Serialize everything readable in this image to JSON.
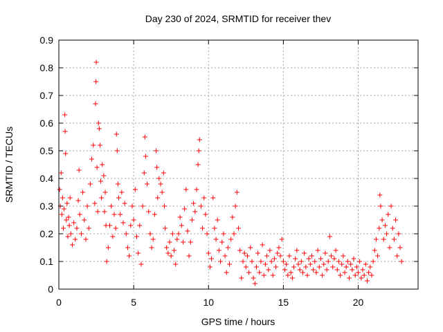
{
  "chart_data": {
    "type": "scatter",
    "title": "Day 230 of 2024, SRMTID for receiver thev",
    "xlabel": "GPS time / hours",
    "ylabel": "SRMTID / TECUs",
    "xlim": [
      0,
      24
    ],
    "ylim": [
      0,
      0.9
    ],
    "xticks": [
      0,
      5,
      10,
      15,
      20
    ],
    "xtick_labels": [
      "0",
      "5",
      "10",
      "15",
      "20"
    ],
    "yticks": [
      0,
      0.1,
      0.2,
      0.3,
      0.4,
      0.5,
      0.6,
      0.7,
      0.8,
      0.9
    ],
    "ytick_labels": [
      "0",
      "0.1",
      "0.2",
      "0.3",
      "0.4",
      "0.5",
      "0.6",
      "0.7",
      "0.8",
      "0.9"
    ],
    "grid": true,
    "marker": "+",
    "marker_color": "#ff0000",
    "series": [
      {
        "name": "SRMTID",
        "points": [
          [
            0.05,
            0.36
          ],
          [
            0.1,
            0.3
          ],
          [
            0.15,
            0.42
          ],
          [
            0.2,
            0.27
          ],
          [
            0.25,
            0.33
          ],
          [
            0.3,
            0.22
          ],
          [
            0.35,
            0.29
          ],
          [
            0.4,
            0.63
          ],
          [
            0.42,
            0.57
          ],
          [
            0.45,
            0.49
          ],
          [
            0.5,
            0.25
          ],
          [
            0.55,
            0.31
          ],
          [
            0.6,
            0.19
          ],
          [
            0.65,
            0.26
          ],
          [
            0.7,
            0.23
          ],
          [
            0.75,
            0.33
          ],
          [
            0.8,
            0.2
          ],
          [
            0.9,
            0.16
          ],
          [
            1.0,
            0.24
          ],
          [
            1.1,
            0.18
          ],
          [
            1.2,
            0.22
          ],
          [
            1.3,
            0.32
          ],
          [
            1.35,
            0.43
          ],
          [
            1.4,
            0.27
          ],
          [
            1.5,
            0.2
          ],
          [
            1.6,
            0.35
          ],
          [
            1.7,
            0.25
          ],
          [
            1.8,
            0.18
          ],
          [
            1.9,
            0.3
          ],
          [
            2.0,
            0.22
          ],
          [
            2.1,
            0.38
          ],
          [
            2.2,
            0.47
          ],
          [
            2.3,
            0.52
          ],
          [
            2.4,
            0.31
          ],
          [
            2.45,
            0.67
          ],
          [
            2.48,
            0.75
          ],
          [
            2.5,
            0.82
          ],
          [
            2.55,
            0.44
          ],
          [
            2.6,
            0.28
          ],
          [
            2.65,
            0.6
          ],
          [
            2.7,
            0.58
          ],
          [
            2.75,
            0.52
          ],
          [
            2.8,
            0.39
          ],
          [
            2.85,
            0.33
          ],
          [
            2.9,
            0.45
          ],
          [
            3.0,
            0.41
          ],
          [
            3.05,
            0.28
          ],
          [
            3.1,
            0.35
          ],
          [
            3.15,
            0.23
          ],
          [
            3.2,
            0.1
          ],
          [
            3.3,
            0.15
          ],
          [
            3.4,
            0.23
          ],
          [
            3.5,
            0.3
          ],
          [
            3.6,
            0.19
          ],
          [
            3.7,
            0.27
          ],
          [
            3.8,
            0.22
          ],
          [
            3.85,
            0.56
          ],
          [
            3.9,
            0.5
          ],
          [
            3.95,
            0.38
          ],
          [
            4.0,
            0.33
          ],
          [
            4.1,
            0.27
          ],
          [
            4.2,
            0.35
          ],
          [
            4.3,
            0.24
          ],
          [
            4.4,
            0.31
          ],
          [
            4.5,
            0.2
          ],
          [
            4.6,
            0.15
          ],
          [
            4.7,
            0.12
          ],
          [
            4.8,
            0.23
          ],
          [
            4.9,
            0.3
          ],
          [
            5.0,
            0.25
          ],
          [
            5.1,
            0.36
          ],
          [
            5.2,
            0.19
          ],
          [
            5.3,
            0.13
          ],
          [
            5.4,
            0.23
          ],
          [
            5.5,
            0.09
          ],
          [
            5.6,
            0.3
          ],
          [
            5.7,
            0.42
          ],
          [
            5.75,
            0.55
          ],
          [
            5.8,
            0.48
          ],
          [
            5.9,
            0.38
          ],
          [
            6.0,
            0.28
          ],
          [
            6.1,
            0.2
          ],
          [
            6.2,
            0.15
          ],
          [
            6.3,
            0.18
          ],
          [
            6.4,
            0.27
          ],
          [
            6.5,
            0.5
          ],
          [
            6.55,
            0.44
          ],
          [
            6.6,
            0.33
          ],
          [
            6.7,
            0.4
          ],
          [
            6.8,
            0.38
          ],
          [
            6.9,
            0.35
          ],
          [
            7.0,
            0.42
          ],
          [
            7.05,
            0.3
          ],
          [
            7.1,
            0.22
          ],
          [
            7.2,
            0.15
          ],
          [
            7.3,
            0.13
          ],
          [
            7.4,
            0.17
          ],
          [
            7.5,
            0.12
          ],
          [
            7.6,
            0.2
          ],
          [
            7.7,
            0.14
          ],
          [
            7.8,
            0.09
          ],
          [
            7.9,
            0.18
          ],
          [
            8.0,
            0.2
          ],
          [
            8.1,
            0.26
          ],
          [
            8.2,
            0.23
          ],
          [
            8.3,
            0.17
          ],
          [
            8.4,
            0.29
          ],
          [
            8.5,
            0.36
          ],
          [
            8.6,
            0.21
          ],
          [
            8.7,
            0.12
          ],
          [
            8.8,
            0.17
          ],
          [
            8.9,
            0.25
          ],
          [
            9.0,
            0.31
          ],
          [
            9.1,
            0.28
          ],
          [
            9.2,
            0.36
          ],
          [
            9.3,
            0.45
          ],
          [
            9.35,
            0.5
          ],
          [
            9.4,
            0.54
          ],
          [
            9.5,
            0.3
          ],
          [
            9.6,
            0.22
          ],
          [
            9.7,
            0.33
          ],
          [
            9.8,
            0.27
          ],
          [
            9.9,
            0.2
          ],
          [
            10.0,
            0.13
          ],
          [
            10.1,
            0.08
          ],
          [
            10.2,
            0.11
          ],
          [
            10.3,
            0.33
          ],
          [
            10.4,
            0.22
          ],
          [
            10.5,
            0.18
          ],
          [
            10.6,
            0.25
          ],
          [
            10.7,
            0.14
          ],
          [
            10.8,
            0.1
          ],
          [
            10.9,
            0.17
          ],
          [
            11.0,
            0.2
          ],
          [
            11.1,
            0.12
          ],
          [
            11.2,
            0.06
          ],
          [
            11.3,
            0.15
          ],
          [
            11.4,
            0.09
          ],
          [
            11.5,
            0.18
          ],
          [
            11.6,
            0.26
          ],
          [
            11.7,
            0.2
          ],
          [
            11.8,
            0.3
          ],
          [
            11.9,
            0.35
          ],
          [
            12.0,
            0.22
          ],
          [
            12.1,
            0.14
          ],
          [
            12.2,
            0.04
          ],
          [
            12.3,
            0.1
          ],
          [
            12.4,
            0.13
          ],
          [
            12.5,
            0.08
          ],
          [
            12.6,
            0.12
          ],
          [
            12.7,
            0.06
          ],
          [
            12.8,
            0.15
          ],
          [
            12.9,
            0.1
          ],
          [
            13.0,
            0.04
          ],
          [
            13.1,
            0.02
          ],
          [
            13.2,
            0.08
          ],
          [
            13.3,
            0.13
          ],
          [
            13.4,
            0.06
          ],
          [
            13.5,
            0.1
          ],
          [
            13.6,
            0.16
          ],
          [
            13.7,
            0.05
          ],
          [
            13.8,
            0.09
          ],
          [
            13.9,
            0.12
          ],
          [
            14.0,
            0.07
          ],
          [
            14.1,
            0.14
          ],
          [
            14.2,
            0.1
          ],
          [
            14.3,
            0.05
          ],
          [
            14.4,
            0.11
          ],
          [
            14.5,
            0.08
          ],
          [
            14.6,
            0.13
          ],
          [
            14.7,
            0.15
          ],
          [
            14.8,
            0.12
          ],
          [
            14.9,
            0.18
          ],
          [
            15.0,
            0.1
          ],
          [
            15.1,
            0.07
          ],
          [
            15.2,
            0.09
          ],
          [
            15.3,
            0.05
          ],
          [
            15.4,
            0.12
          ],
          [
            15.5,
            0.06
          ],
          [
            15.6,
            0.04
          ],
          [
            15.7,
            0.08
          ],
          [
            15.8,
            0.11
          ],
          [
            15.9,
            0.14
          ],
          [
            16.0,
            0.09
          ],
          [
            16.1,
            0.07
          ],
          [
            16.2,
            0.1
          ],
          [
            16.3,
            0.06
          ],
          [
            16.4,
            0.13
          ],
          [
            16.5,
            0.08
          ],
          [
            16.6,
            0.05
          ],
          [
            16.7,
            0.11
          ],
          [
            16.8,
            0.09
          ],
          [
            16.9,
            0.12
          ],
          [
            17.0,
            0.07
          ],
          [
            17.1,
            0.1
          ],
          [
            17.2,
            0.06
          ],
          [
            17.3,
            0.14
          ],
          [
            17.4,
            0.08
          ],
          [
            17.5,
            0.11
          ],
          [
            17.6,
            0.05
          ],
          [
            17.7,
            0.09
          ],
          [
            17.8,
            0.13
          ],
          [
            17.9,
            0.07
          ],
          [
            18.0,
            0.1
          ],
          [
            18.1,
            0.19
          ],
          [
            18.2,
            0.12
          ],
          [
            18.3,
            0.08
          ],
          [
            18.4,
            0.11
          ],
          [
            18.5,
            0.14
          ],
          [
            18.6,
            0.07
          ],
          [
            18.7,
            0.1
          ],
          [
            18.8,
            0.05
          ],
          [
            18.9,
            0.09
          ],
          [
            19.0,
            0.12
          ],
          [
            19.1,
            0.06
          ],
          [
            19.2,
            0.08
          ],
          [
            19.3,
            0.1
          ],
          [
            19.4,
            0.04
          ],
          [
            19.5,
            0.09
          ],
          [
            19.6,
            0.07
          ],
          [
            19.7,
            0.11
          ],
          [
            19.8,
            0.05
          ],
          [
            19.9,
            0.08
          ],
          [
            20.0,
            0.06
          ],
          [
            20.1,
            0.1
          ],
          [
            20.2,
            0.04
          ],
          [
            20.3,
            0.07
          ],
          [
            20.4,
            0.05
          ],
          [
            20.5,
            0.09
          ],
          [
            20.6,
            0.03
          ],
          [
            20.7,
            0.06
          ],
          [
            20.8,
            0.08
          ],
          [
            20.9,
            0.05
          ],
          [
            21.0,
            0.1
          ],
          [
            21.1,
            0.14
          ],
          [
            21.2,
            0.18
          ],
          [
            21.3,
            0.12
          ],
          [
            21.4,
            0.22
          ],
          [
            21.45,
            0.34
          ],
          [
            21.5,
            0.3
          ],
          [
            21.6,
            0.25
          ],
          [
            21.7,
            0.18
          ],
          [
            21.8,
            0.23
          ],
          [
            21.9,
            0.2
          ],
          [
            22.0,
            0.27
          ],
          [
            22.1,
            0.15
          ],
          [
            22.2,
            0.3
          ],
          [
            22.3,
            0.22
          ],
          [
            22.4,
            0.18
          ],
          [
            22.5,
            0.25
          ],
          [
            22.6,
            0.12
          ],
          [
            22.7,
            0.2
          ],
          [
            22.8,
            0.15
          ],
          [
            22.9,
            0.1
          ]
        ]
      }
    ]
  }
}
